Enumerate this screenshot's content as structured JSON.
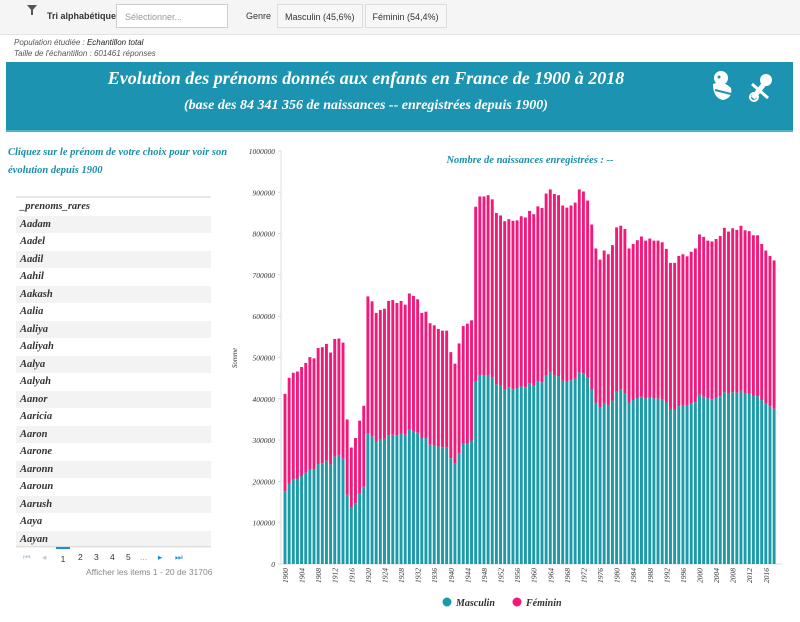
{
  "toolbar": {
    "sort_label": "Tri alphabétique",
    "select_placeholder": "Sélectionner...",
    "genre_label": "Genre",
    "genre_options": [
      "Masculin (45,6%)",
      "Féminin (54,4%)"
    ]
  },
  "info": {
    "population_label": "Population étudiée : ",
    "population_value": "Echantillon total",
    "sample": "Taille de l'échantillon : 601461 réponses"
  },
  "banner": {
    "title": "Evolution des prénoms donnés aux enfants en France de 1900 à 2018",
    "subtitle": "(base des 84 341 356 de naissances -- enregistrées depuis 1900)",
    "icons": [
      "baby-icon",
      "pacifier-icon"
    ]
  },
  "sidebar": {
    "instruction": "Cliquez sur le prénom de votre choix pour voir son évolution depuis 1900",
    "names": [
      "_prenoms_rares",
      "Aadam",
      "Aadel",
      "Aadil",
      "Aahil",
      "Aakash",
      "Aalia",
      "Aaliya",
      "Aaliyah",
      "Aalya",
      "Aalyah",
      "Aanor",
      "Aaricia",
      "Aaron",
      "Aarone",
      "Aaronn",
      "Aaroun",
      "Aarush",
      "Aaya",
      "Aayan"
    ],
    "pager": {
      "pages": [
        "1",
        "2",
        "3",
        "4",
        "5",
        "..."
      ],
      "current": "1",
      "summary": "Afficher les items 1 - 20 de 31706"
    }
  },
  "colors": {
    "header": "#1b93b1",
    "masculin": "#1b9aa8",
    "feminin": "#f2197b"
  },
  "chart_data": {
    "type": "bar",
    "stacked": true,
    "title": "Nombre de naissances enregistrées : --",
    "ylabel": "Somme",
    "ylim": [
      0,
      1000000
    ],
    "yticks": [
      "0",
      "100000",
      "200000",
      "300000",
      "400000",
      "500000",
      "600000",
      "700000",
      "800000",
      "900000",
      "1000000"
    ],
    "x_start": 1900,
    "x_end": 2018,
    "xtick_step": 4,
    "legend": "bottom",
    "series": [
      {
        "name": "Masculin",
        "values": [
          176000,
          195000,
          204000,
          207000,
          213000,
          221000,
          228000,
          229000,
          242000,
          244000,
          250000,
          241000,
          260000,
          262000,
          255000,
          168000,
          136000,
          147000,
          170000,
          187000,
          317000,
          309000,
          296000,
          301000,
          303000,
          312000,
          313000,
          312000,
          315000,
          313000,
          325000,
          322000,
          318000,
          305000,
          305000,
          289000,
          287000,
          284000,
          283000,
          283000,
          256000,
          243000,
          268000,
          291000,
          293000,
          299000,
          443000,
          456000,
          456000,
          456000,
          451000,
          435000,
          432000,
          422000,
          428000,
          423000,
          426000,
          430000,
          428000,
          438000,
          432000,
          443000,
          440000,
          456000,
          464000,
          456000,
          455000,
          444000,
          441000,
          445000,
          449000,
          464000,
          462000,
          451000,
          422000,
          391000,
          378000,
          388000,
          384000,
          396000,
          417000,
          422000,
          414000,
          391000,
          397000,
          402000,
          405000,
          401000,
          403000,
          401000,
          401000,
          398000,
          391000,
          374000,
          374000,
          382000,
          385000,
          383000,
          388000,
          392000,
          410000,
          405000,
          401000,
          399000,
          403000,
          406000,
          416000,
          412000,
          416000,
          415000,
          420000,
          412000,
          412000,
          408000,
          406000,
          397000,
          388000,
          382000,
          376000
        ]
      },
      {
        "name": "Féminin",
        "values": [
          236000,
          256000,
          259000,
          259000,
          264000,
          266000,
          273000,
          269000,
          281000,
          281000,
          283000,
          271000,
          285000,
          284000,
          281000,
          182000,
          146000,
          158000,
          177000,
          196000,
          331000,
          327000,
          312000,
          314000,
          315000,
          325000,
          326000,
          320000,
          322000,
          315000,
          330000,
          327000,
          323000,
          303000,
          306000,
          294000,
          291000,
          285000,
          282000,
          282000,
          257000,
          242000,
          266000,
          285000,
          289000,
          291000,
          422000,
          434000,
          434000,
          437000,
          432000,
          415000,
          412000,
          408000,
          407000,
          408000,
          406000,
          412000,
          411000,
          417000,
          415000,
          423000,
          422000,
          441000,
          443000,
          440000,
          438000,
          424000,
          422000,
          423000,
          426000,
          443000,
          440000,
          429000,
          400000,
          373000,
          359000,
          371000,
          366000,
          376000,
          398000,
          397000,
          397000,
          373000,
          378000,
          382000,
          388000,
          382000,
          385000,
          382000,
          382000,
          381000,
          372000,
          355000,
          355000,
          364000,
          365000,
          362000,
          368000,
          372000,
          388000,
          387000,
          382000,
          382000,
          384000,
          388000,
          398000,
          393000,
          397000,
          394000,
          399000,
          396000,
          394000,
          388000,
          390000,
          378000,
          371000,
          364000,
          359000
        ]
      }
    ]
  }
}
